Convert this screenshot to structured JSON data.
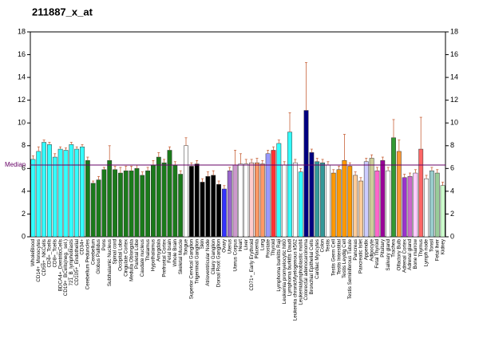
{
  "chart_data": {
    "type": "bar",
    "title": "211887_x_at",
    "median_label": "Median",
    "median": 6.3,
    "ylim": [
      0,
      18
    ],
    "yticks": [
      0,
      2,
      4,
      6,
      8,
      10,
      12,
      14,
      16,
      18
    ],
    "categories": [
      "WholeBlood",
      "CD14+_Monocytes",
      "CD56+_NKCells",
      "CD4+_Tcells",
      "CD8+_Tcells",
      "BDCA4+_DentriticCells",
      "CD19+_BCells(neg._sel.)",
      "721_B_lymphoblasts",
      "CD105+_Endothelial",
      "CD34+",
      "Cerebellum Peduncles",
      "Cerebellum",
      "Globus Pallidus",
      "Pons",
      "Subthalamic Nucleus",
      "Spinal cord",
      "Occipital Lobe",
      "Cingulate Cortex",
      "Medulla Oblongata",
      "Parietal Lobe",
      "Caudate nucleus",
      "Thalamus",
      "Hypothalamus",
      "Amygdala",
      "Prefrontal Cortex",
      "Fetal brain",
      "Whole Brain",
      "Skeletal Muscle",
      "Tongue",
      "Superior Cervical Ganglion",
      "Trigeminal Ganglion",
      "Skin",
      "Atrioventricular Node",
      "Ciliary Ganglion",
      "Dorsal Root Ganglion",
      "Ovary",
      "Uterus",
      "Uterus Corpus",
      "Heart",
      "Liver",
      "CD71+_Early Erythroid",
      "Placenta",
      "Lung",
      "Prostate",
      "Thyroid",
      "Lymphoma burkitts Raji",
      "Leukemia promyelocytic hl60",
      "Lymphoma burkitts Daudi",
      "Leukemia chronicMyelogenous k562",
      "Leukemialymphoblastic molt4",
      "Colorectal adenocarcinoma",
      "Bronchial Epithelial Cells",
      "Cardiac Myocytes",
      "Colon",
      "Testis",
      "Testis Germ Cell",
      "Testis Interstitial",
      "Testis Leydig Cell",
      "Testis Seminiferous Tubule",
      "Pancreas",
      "Pancreatic Islet",
      "Appendix",
      "Adipocyte",
      "Fetal Thyroid",
      "Pituitary",
      "Salivary gland",
      "Trachea",
      "Olfactory Bulb",
      "Adrenal Cortex",
      "Adrenal gland",
      "Bone marrow",
      "Thymus",
      "Lymph node",
      "Tonsil",
      "Fetal liver",
      "Kidney"
    ],
    "values": [
      6.8,
      7.5,
      8.3,
      8.1,
      7.0,
      7.7,
      7.6,
      8.1,
      7.7,
      7.9,
      6.7,
      4.7,
      5.0,
      5.9,
      6.7,
      5.9,
      5.6,
      5.8,
      5.8,
      6.0,
      5.4,
      5.8,
      6.3,
      7.0,
      6.5,
      7.6,
      6.3,
      5.5,
      8.0,
      6.2,
      6.4,
      4.8,
      5.3,
      5.4,
      4.6,
      4.2,
      5.8,
      6.3,
      6.4,
      6.4,
      6.5,
      6.5,
      6.4,
      7.3,
      7.6,
      8.2,
      6.3,
      9.2,
      6.5,
      5.7,
      11.1,
      7.4,
      6.6,
      6.5,
      6.3,
      5.6,
      5.9,
      6.7,
      6.2,
      5.4,
      4.9,
      6.6,
      6.9,
      5.8,
      6.7,
      5.8,
      8.7,
      7.5,
      5.2,
      5.3,
      5.6,
      7.7,
      5.1,
      5.8,
      5.6,
      4.5
    ],
    "errors": [
      0.3,
      0.4,
      0.2,
      0.2,
      0.3,
      0.2,
      0.2,
      0.2,
      0.2,
      0.2,
      0.3,
      0.2,
      0.3,
      0.2,
      1.3,
      0.3,
      0.5,
      0.4,
      0.4,
      0.3,
      0.3,
      0.3,
      0.4,
      0.4,
      0.3,
      0.3,
      0.3,
      0.3,
      0.7,
      0.3,
      0.3,
      0.3,
      0.4,
      0.4,
      0.3,
      0.3,
      0.3,
      1.3,
      0.9,
      0.4,
      0.3,
      0.4,
      0.3,
      0.3,
      0.3,
      0.3,
      0.3,
      1.7,
      0.3,
      0.3,
      4.2,
      0.3,
      0.3,
      0.3,
      0.3,
      0.3,
      0.3,
      2.3,
      0.3,
      0.3,
      0.3,
      0.3,
      0.3,
      0.3,
      0.3,
      0.3,
      1.6,
      1.0,
      0.3,
      0.3,
      0.3,
      2.8,
      0.3,
      0.3,
      0.3,
      0.3
    ],
    "colors": [
      "#33ffff",
      "#33ffff",
      "#33ffff",
      "#33ffff",
      "#33ffff",
      "#33ffff",
      "#33ffff",
      "#33ffff",
      "#33ffff",
      "#33ffff",
      "#1a7a1a",
      "#1a7a1a",
      "#1a7a1a",
      "#1a7a1a",
      "#1a7a1a",
      "#1a7a1a",
      "#1a7a1a",
      "#1a7a1a",
      "#1a7a1a",
      "#1a7a1a",
      "#1a7a1a",
      "#1a7a1a",
      "#1a7a1a",
      "#1a7a1a",
      "#1a7a1a",
      "#1a7a1a",
      "#1a7a1a",
      "#1a7a1a",
      "#ffffff",
      "#000000",
      "#000000",
      "#000000",
      "#000000",
      "#000000",
      "#000000",
      "#3333ff",
      "#9966cc",
      "#cc99cc",
      "#ffffff",
      "#ffffff",
      "#ffcccc",
      "#ff9966",
      "#ff9966",
      "#9999ff",
      "#ff3333",
      "#33ffff",
      "#ffffff",
      "#33ffff",
      "#ffffff",
      "#33ffff",
      "#000080",
      "#000080",
      "#339999",
      "#339999",
      "#ffffff",
      "#ff9900",
      "#ff9900",
      "#ff9900",
      "#ff9900",
      "#ffcc99",
      "#ffcc99",
      "#ccccff",
      "#cccc99",
      "#ff66cc",
      "#990099",
      "#ffffff",
      "#339933",
      "#ff9933",
      "#9933cc",
      "#cc66cc",
      "#ffccff",
      "#ff6666",
      "#ffffff",
      "#99cccc",
      "#99cc99",
      "#ccffcc"
    ]
  }
}
